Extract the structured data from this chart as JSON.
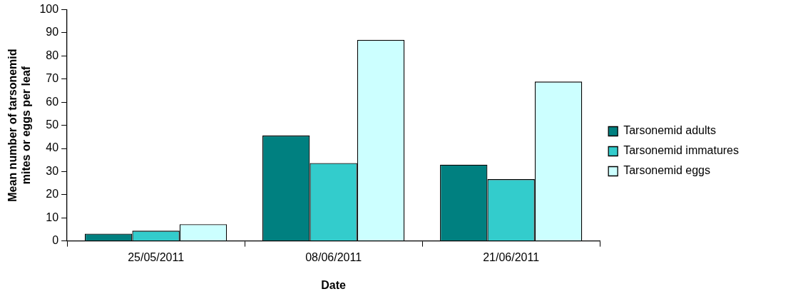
{
  "chart_data": {
    "type": "bar",
    "xlabel": "Date",
    "ylabel": "Mean number of tarsonemid mites or eggs per leaf",
    "categories": [
      "25/05/2011",
      "08/06/2011",
      "21/06/2011"
    ],
    "series": [
      {
        "name": "Tarsonemid adults",
        "color": "#008080",
        "values": [
          3.1,
          45.6,
          33.0
        ]
      },
      {
        "name": "Tarsonemid immatures",
        "color": "#33cccc",
        "values": [
          4.4,
          33.7,
          26.7
        ]
      },
      {
        "name": "Tarsonemid eggs",
        "color": "#ccffff",
        "values": [
          7.2,
          86.9,
          68.9
        ]
      }
    ],
    "ylim": [
      0,
      100
    ],
    "yticks": [
      0,
      10,
      20,
      30,
      40,
      50,
      60,
      70,
      80,
      90,
      100
    ],
    "grid": false,
    "legend": "right"
  }
}
